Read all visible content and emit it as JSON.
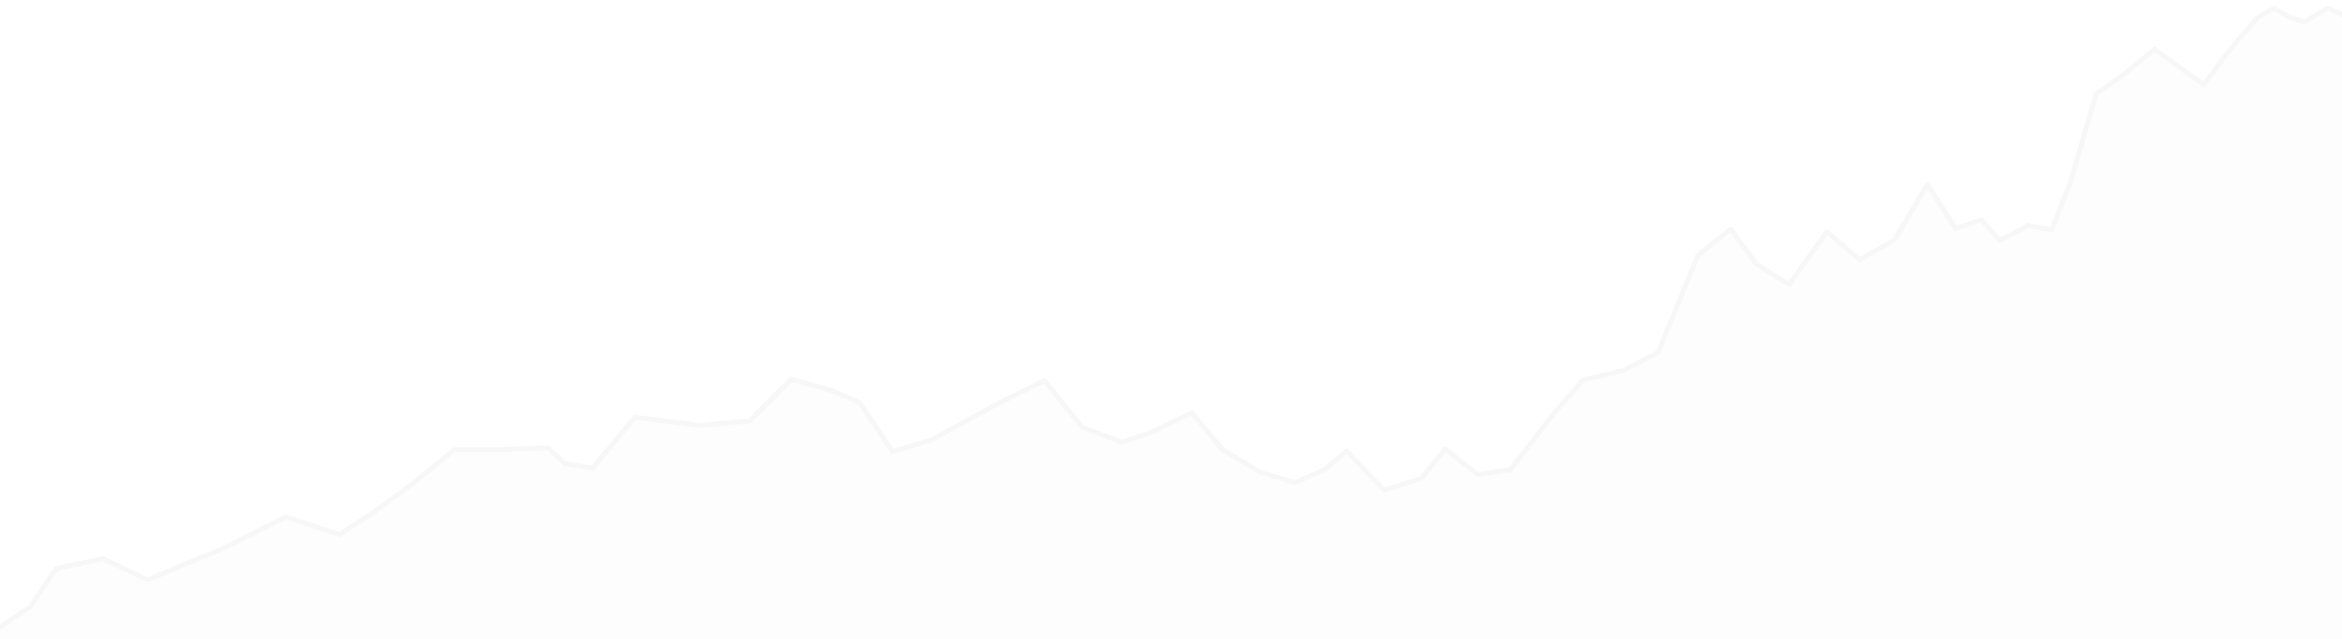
{
  "colors": {
    "background": "#ffffff",
    "line": "#f7f7f7",
    "fill": "#fdfdfd"
  },
  "chart_data": {
    "type": "area",
    "title": "",
    "xlabel": "",
    "ylabel": "",
    "grid": false,
    "legend": "none",
    "xlim": [
      0,
      100
    ],
    "ylim": [
      0,
      100
    ],
    "series": [
      {
        "x": [
          0,
          1.3,
          2.4,
          4.4,
          6.3,
          9.5,
          12.2,
          14.5,
          15.9,
          17.7,
          19.4,
          21.5,
          23.4,
          24.1,
          25.3,
          27.1,
          29.9,
          32.0,
          33.8,
          35.5,
          36.7,
          38.1,
          39.8,
          42.4,
          44.6,
          46.2,
          47.9,
          49.1,
          50.9,
          52.2,
          53.8,
          55.3,
          56.6,
          57.5,
          59.1,
          60.7,
          61.7,
          63.1,
          64.5,
          66.3,
          67.6,
          69.3,
          70.8,
          72.5,
          73.9,
          75.0,
          76.4,
          78.0,
          79.4,
          80.9,
          82.3,
          83.5,
          84.6,
          85.4,
          86.6,
          87.6,
          88.4,
          89.5,
          90.7,
          92.0,
          94.1,
          94.9,
          95.7,
          96.4,
          97.1,
          97.8,
          98.4,
          99.4,
          100
        ],
        "y": [
          0.6,
          3.9,
          10.0,
          11.6,
          8.2,
          13.2,
          18.3,
          15.5,
          18.9,
          23.9,
          29.1,
          29.1,
          29.4,
          26.9,
          26.1,
          34.3,
          33.0,
          33.7,
          40.4,
          38.6,
          36.7,
          28.8,
          30.7,
          36.1,
          40.2,
          32.7,
          30.3,
          31.8,
          35.0,
          29.1,
          25.5,
          23.8,
          26.0,
          28.9,
          22.6,
          24.5,
          29.2,
          25.1,
          25.9,
          34.7,
          40.3,
          41.8,
          44.7,
          60.3,
          64.5,
          58.9,
          55.6,
          64.1,
          59.6,
          62.8,
          71.7,
          64.6,
          66.0,
          62.7,
          65.1,
          64.4,
          72.0,
          86.2,
          89.4,
          93.4,
          87.7,
          91.8,
          95.5,
          98.5,
          100.0,
          98.5,
          97.8,
          100.0,
          99.0
        ]
      }
    ]
  }
}
